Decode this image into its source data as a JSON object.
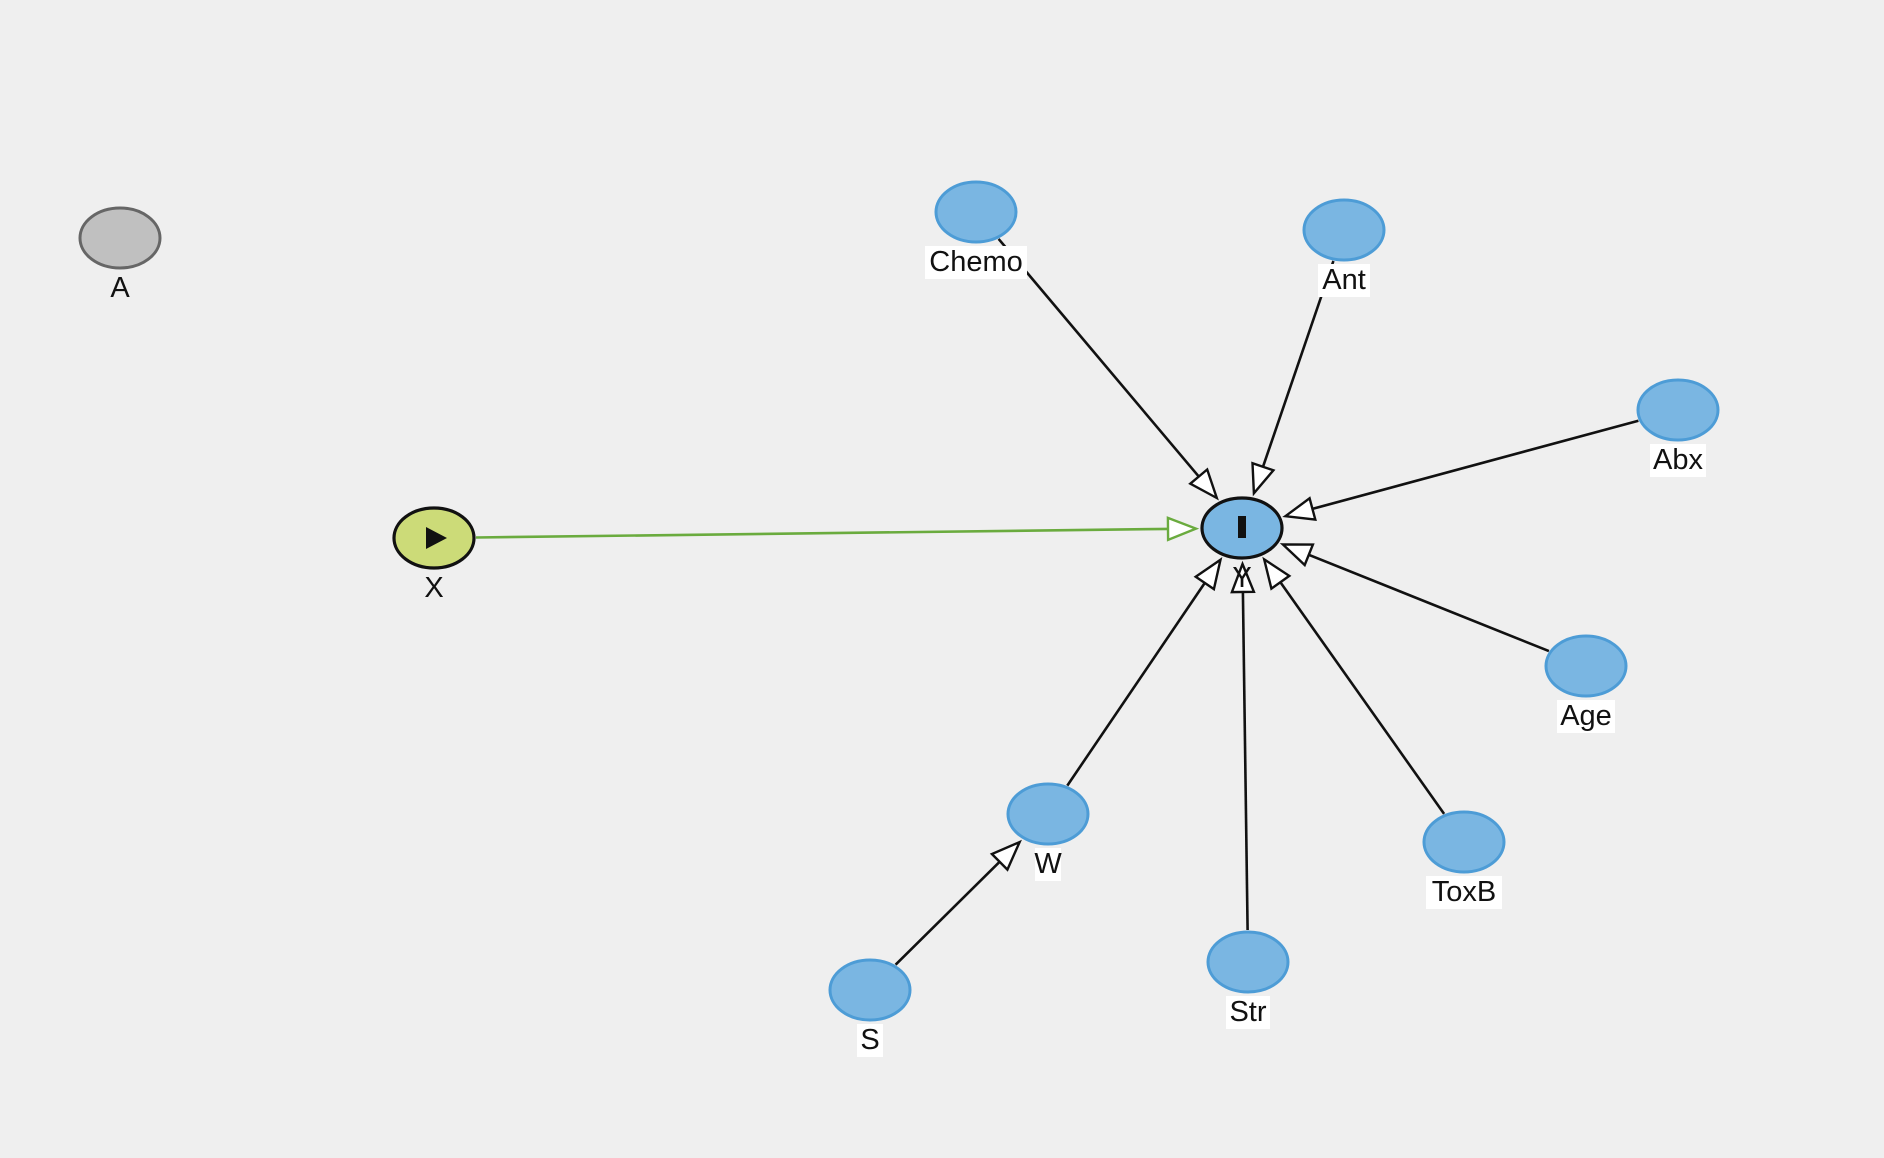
{
  "diagram": {
    "title": "",
    "colors": {
      "background": "#efefef",
      "adjusted_fill": "#7ab6e2",
      "adjusted_stroke": "#4d9cd6",
      "exposure_fill": "#ccdb78",
      "exposure_stroke": "#111111",
      "outcome_fill": "#7ab6e2",
      "outcome_stroke": "#111111",
      "unobserved_fill": "#c0c0c0",
      "unobserved_stroke": "#666666",
      "causal_edge": "#111111",
      "exposure_edge": "#6aab3e"
    },
    "nodes": [
      {
        "id": "A",
        "label": "A",
        "role": "unobserved"
      },
      {
        "id": "X",
        "label": "X",
        "role": "exposure",
        "icon": "play-icon"
      },
      {
        "id": "Y",
        "label": "Y",
        "role": "outcome",
        "icon": "outcome-bar-icon"
      },
      {
        "id": "Chemo",
        "label": "Chemo",
        "role": "adjusted"
      },
      {
        "id": "Ant",
        "label": "Ant",
        "role": "adjusted"
      },
      {
        "id": "Abx",
        "label": "Abx",
        "role": "adjusted"
      },
      {
        "id": "Age",
        "label": "Age",
        "role": "adjusted"
      },
      {
        "id": "ToxB",
        "label": "ToxB",
        "role": "adjusted"
      },
      {
        "id": "Str",
        "label": "Str",
        "role": "adjusted"
      },
      {
        "id": "W",
        "label": "W",
        "role": "adjusted"
      },
      {
        "id": "S",
        "label": "S",
        "role": "adjusted"
      }
    ],
    "edges": [
      {
        "from": "X",
        "to": "Y",
        "type": "causal-path"
      },
      {
        "from": "Chemo",
        "to": "Y",
        "type": "causal"
      },
      {
        "from": "Ant",
        "to": "Y",
        "type": "causal"
      },
      {
        "from": "Abx",
        "to": "Y",
        "type": "causal"
      },
      {
        "from": "Age",
        "to": "Y",
        "type": "causal"
      },
      {
        "from": "ToxB",
        "to": "Y",
        "type": "causal"
      },
      {
        "from": "Str",
        "to": "Y",
        "type": "causal"
      },
      {
        "from": "W",
        "to": "Y",
        "type": "causal"
      },
      {
        "from": "S",
        "to": "W",
        "type": "causal"
      }
    ]
  }
}
